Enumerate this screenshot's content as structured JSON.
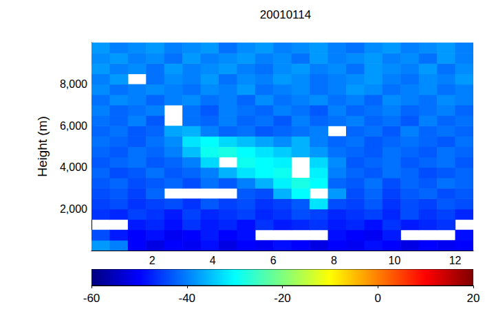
{
  "chart_data": {
    "type": "heatmap",
    "title": "20010114",
    "y_label": "Height (m)",
    "x": [
      0.3,
      0.9,
      1.5,
      2.1,
      2.7,
      3.3,
      3.9,
      4.5,
      5.1,
      5.7,
      6.3,
      6.9,
      7.5,
      8.1,
      8.7,
      9.3,
      9.9,
      10.5,
      11.1,
      11.7,
      12.3
    ],
    "y": [
      250,
      750,
      1250,
      1750,
      2250,
      2750,
      3250,
      3750,
      4250,
      4750,
      5250,
      5750,
      6250,
      6750,
      7250,
      7750,
      8250,
      8750,
      9250,
      9750
    ],
    "values": [
      [
        -38,
        -40,
        -50,
        -52,
        -50,
        -51,
        -49,
        -52,
        -50,
        -51,
        -49,
        -50,
        -52,
        -50,
        -51,
        -49,
        -50,
        -52,
        -50,
        -51,
        -50
      ],
      [
        -44,
        -48,
        -50,
        -49,
        -51,
        -50,
        -48,
        -50,
        -49,
        null,
        null,
        null,
        null,
        -49,
        -50,
        -51,
        -48,
        null,
        null,
        null,
        -49
      ],
      [
        null,
        null,
        -48,
        -47,
        -49,
        -46,
        -48,
        -47,
        -49,
        -46,
        -48,
        -47,
        -46,
        -48,
        -47,
        -49,
        -46,
        -48,
        -47,
        -46,
        null
      ],
      [
        -46,
        -47,
        -45,
        -46,
        -48,
        -45,
        -47,
        -46,
        -45,
        -47,
        -46,
        -44,
        -45,
        -47,
        -46,
        -45,
        -47,
        -44,
        -46,
        -45,
        -47
      ],
      [
        -45,
        -44,
        -46,
        -45,
        -44,
        -46,
        -43,
        -45,
        -44,
        -46,
        -45,
        -43,
        -32,
        -44,
        -45,
        -43,
        -46,
        -44,
        -45,
        -43,
        -44
      ],
      [
        -44,
        -43,
        -45,
        -42,
        null,
        null,
        null,
        null,
        -43,
        -44,
        -36,
        -30,
        null,
        -38,
        -44,
        -42,
        -45,
        -43,
        -42,
        -44,
        -43
      ],
      [
        -43,
        -42,
        -44,
        -43,
        -42,
        -44,
        -41,
        -43,
        -40,
        -36,
        -31,
        -28,
        -30,
        -42,
        -43,
        -41,
        -44,
        -42,
        -43,
        -41,
        -42
      ],
      [
        -42,
        -44,
        -43,
        -41,
        -43,
        -42,
        -40,
        -36,
        -32,
        -30,
        -29,
        null,
        -31,
        -40,
        -42,
        -43,
        -41,
        -42,
        -44,
        -43,
        -42
      ],
      [
        -43,
        -42,
        -41,
        -43,
        -42,
        -40,
        -33,
        null,
        -29,
        -30,
        -31,
        null,
        -33,
        -39,
        -43,
        -42,
        -41,
        -43,
        -42,
        -41,
        -43
      ],
      [
        -42,
        -43,
        -41,
        -42,
        -40,
        -35,
        -29,
        -28,
        -30,
        -32,
        -34,
        -36,
        -38,
        -41,
        -42,
        -43,
        -41,
        -42,
        -43,
        -41,
        -42
      ],
      [
        -41,
        -42,
        -43,
        -41,
        -39,
        -32,
        -30,
        -33,
        -35,
        -37,
        -39,
        -36,
        -40,
        -42,
        -41,
        -43,
        -42,
        -41,
        -42,
        -43,
        -41
      ],
      [
        -42,
        -41,
        -43,
        -42,
        -37,
        -36,
        -40,
        -42,
        -41,
        -43,
        -42,
        -41,
        -40,
        null,
        -42,
        -41,
        -43,
        -40,
        -42,
        -41,
        -42
      ],
      [
        -41,
        -42,
        -40,
        -43,
        null,
        -41,
        -42,
        -40,
        -42,
        -41,
        -43,
        -40,
        -42,
        -41,
        -40,
        -42,
        -41,
        -43,
        -40,
        -42,
        -41
      ],
      [
        -40,
        -42,
        -41,
        -40,
        null,
        -41,
        -43,
        -40,
        -41,
        -42,
        -40,
        -41,
        -43,
        -40,
        -42,
        -41,
        -40,
        -42,
        -41,
        -40,
        -42
      ],
      [
        -41,
        -39,
        -40,
        -42,
        -40,
        -39,
        -41,
        -40,
        -42,
        -39,
        -41,
        -40,
        -39,
        -41,
        -40,
        -42,
        -39,
        -40,
        -41,
        -39,
        -40
      ],
      [
        -39,
        -41,
        -40,
        -39,
        -40,
        -41,
        -39,
        -40,
        -38,
        -41,
        -40,
        -39,
        -41,
        -40,
        -38,
        -39,
        -41,
        -40,
        -39,
        -41,
        -40
      ],
      [
        -40,
        -38,
        null,
        -41,
        -39,
        -40,
        -38,
        -41,
        -39,
        -40,
        -38,
        -39,
        -41,
        -40,
        -39,
        -38,
        -40,
        -41,
        -39,
        -40,
        -38
      ],
      [
        -38,
        -40,
        -39,
        -41,
        -38,
        -40,
        -39,
        -38,
        -40,
        -41,
        -39,
        -38,
        -40,
        -39,
        -41,
        -38,
        -39,
        -40,
        -38,
        -41,
        -39
      ],
      [
        -39,
        -38,
        -40,
        -39,
        -41,
        -38,
        -40,
        -39,
        -38,
        -40,
        -39,
        -41,
        -38,
        -40,
        -39,
        -38,
        -40,
        -39,
        -41,
        -38,
        -40
      ],
      [
        -38,
        -40,
        -39,
        -38,
        -40,
        -39,
        -38,
        -41,
        -39,
        -38,
        -40,
        -39,
        -38,
        -40,
        -41,
        -39,
        -38,
        -40,
        -39,
        -38,
        -40
      ]
    ],
    "xlim": [
      0,
      12.6
    ],
    "xticks": [
      2,
      4,
      6,
      8,
      10,
      12
    ],
    "ylim": [
      0,
      10000
    ],
    "yticks": [
      2000,
      4000,
      6000,
      8000
    ],
    "colorbar": {
      "range": [
        -60,
        20
      ],
      "ticks": [
        -60,
        -40,
        -20,
        0,
        20
      ]
    },
    "grid": false
  }
}
